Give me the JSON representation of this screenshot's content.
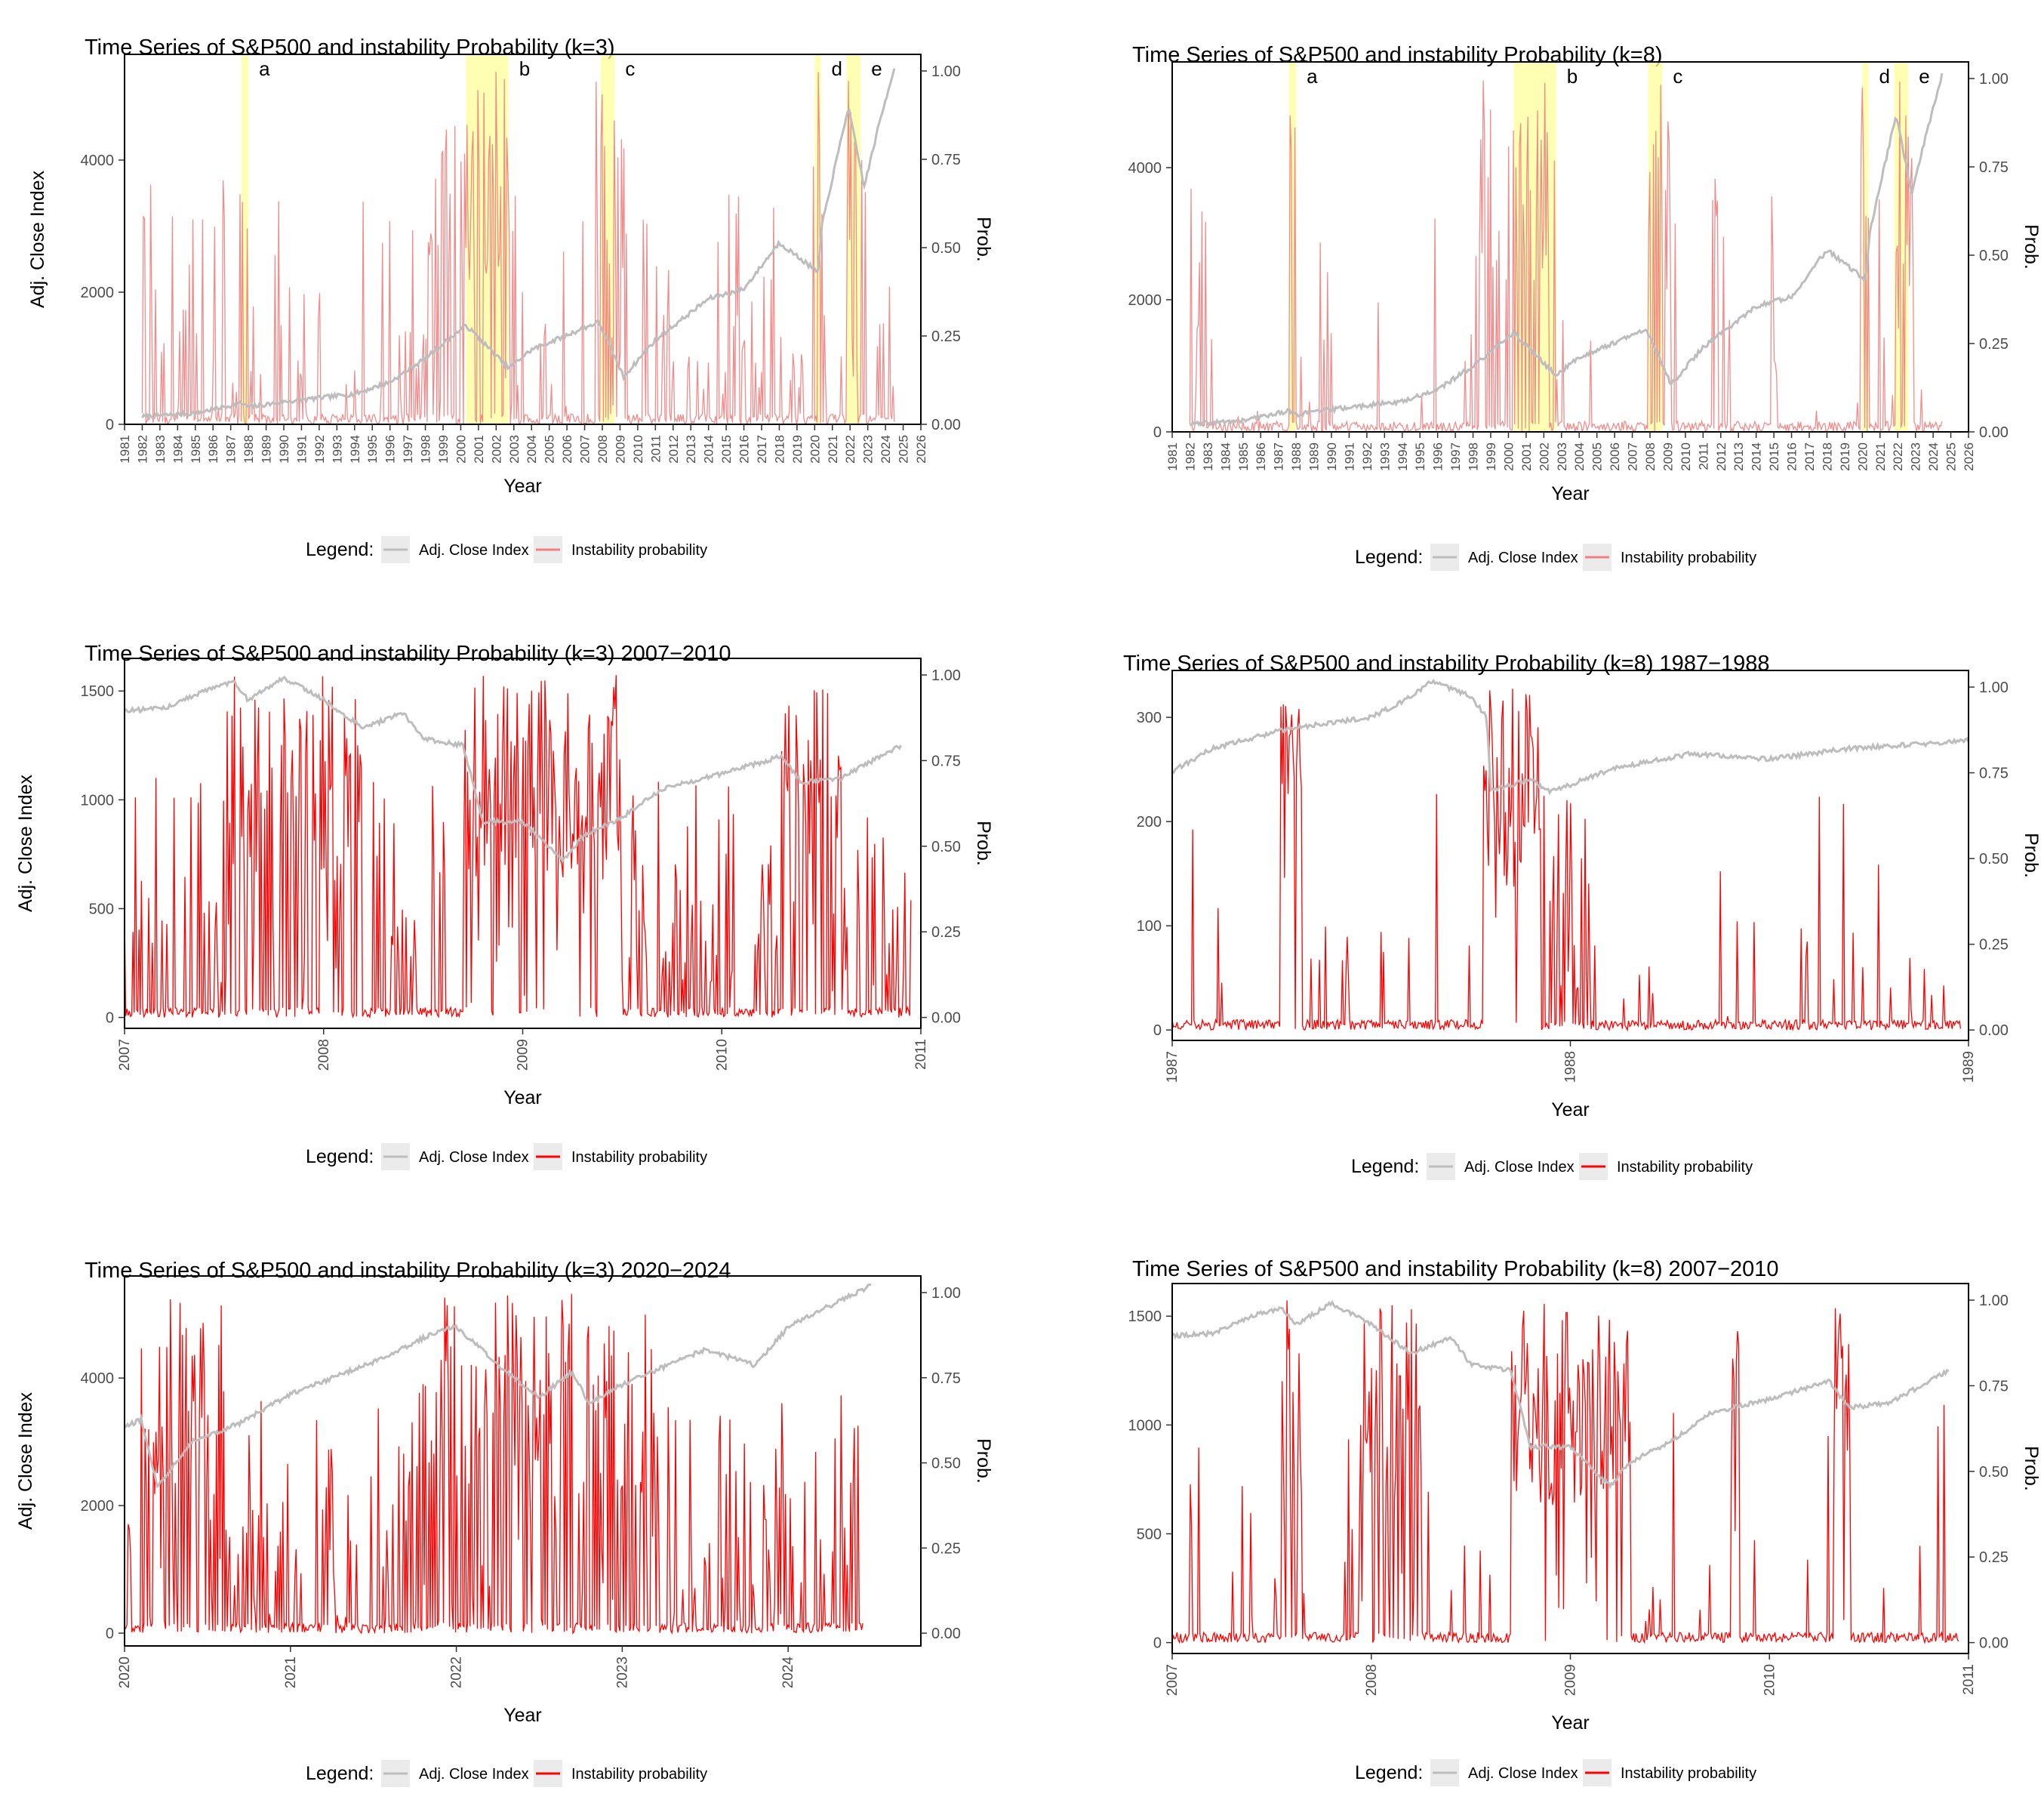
{
  "colors": {
    "price": "#bdbdbd",
    "prob_light": "#f08080",
    "prob_strong": "#ff0000",
    "highlight": "#ffff99",
    "overlap": "#f4a460",
    "key_bg": "#ebebeb"
  },
  "legend": {
    "title": "Legend:",
    "price_label": "Adj. Close Index",
    "prob_label": "Instability probability"
  },
  "chart_data": [
    {
      "id": "full-k3",
      "type": "line",
      "title": "Time Series of S&P500 and instability Probability (k=3)",
      "xlabel": "Year",
      "ylabel": "Adj. Close Index",
      "ylabel2": "Prob.",
      "xlim": [
        1981,
        2026
      ],
      "ylim": [
        0,
        5600
      ],
      "y2lim": [
        0,
        1.0
      ],
      "xticks": [
        "1981",
        "1982",
        "1983",
        "1984",
        "1985",
        "1986",
        "1987",
        "1988",
        "1989",
        "1990",
        "1991",
        "1992",
        "1993",
        "1994",
        "1995",
        "1996",
        "1997",
        "1998",
        "1999",
        "2000",
        "2001",
        "2002",
        "2003",
        "2004",
        "2005",
        "2006",
        "2007",
        "2008",
        "2009",
        "2010",
        "2011",
        "2012",
        "2013",
        "2014",
        "2015",
        "2016",
        "2017",
        "2018",
        "2019",
        "2020",
        "2021",
        "2022",
        "2023",
        "2024",
        "2025",
        "2026"
      ],
      "yticks": [
        "0",
        "2000",
        "4000"
      ],
      "y2ticks": [
        "0.00",
        "0.25",
        "0.50",
        "0.75",
        "1.00"
      ],
      "regions": [
        {
          "label": "a",
          "start": 1987.6,
          "end": 1988.0
        },
        {
          "label": "b",
          "start": 2000.3,
          "end": 2002.7
        },
        {
          "label": "c",
          "start": 2007.9,
          "end": 2008.7
        },
        {
          "label": "d",
          "start": 2020.0,
          "end": 2020.35
        },
        {
          "label": "e",
          "start": 2021.8,
          "end": 2022.6
        }
      ],
      "price_anchors": [
        [
          1982,
          115
        ],
        [
          1985,
          170
        ],
        [
          1987.6,
          320
        ],
        [
          1988,
          260
        ],
        [
          1990,
          340
        ],
        [
          1994,
          460
        ],
        [
          1996,
          640
        ],
        [
          1998,
          1000
        ],
        [
          2000.3,
          1500
        ],
        [
          2002.7,
          850
        ],
        [
          2004,
          1130
        ],
        [
          2007.8,
          1550
        ],
        [
          2009.2,
          720
        ],
        [
          2011,
          1280
        ],
        [
          2014,
          1900
        ],
        [
          2016,
          2050
        ],
        [
          2018,
          2750
        ],
        [
          2020.2,
          2300
        ],
        [
          2020.4,
          3000
        ],
        [
          2021.9,
          4800
        ],
        [
          2022.8,
          3600
        ],
        [
          2023.6,
          4500
        ],
        [
          2024.5,
          5400
        ]
      ],
      "prob": {
        "min": 1982.0,
        "max": 2024.5,
        "base": 0.15,
        "spike": 0.11,
        "regions": [
          [
            1982.3,
            1983.1,
            0.35
          ],
          [
            1987.6,
            1988.0,
            0.6
          ],
          [
            1998.0,
            2003.0,
            0.55
          ],
          [
            2007.6,
            2009.3,
            0.5
          ],
          [
            2010.3,
            2010.8,
            0.35
          ],
          [
            2011.4,
            2011.9,
            0.4
          ],
          [
            2019.9,
            2020.5,
            0.55
          ],
          [
            2021.8,
            2022.8,
            0.45
          ]
        ]
      },
      "prob_color": "light"
    },
    {
      "id": "full-k8",
      "type": "line",
      "title": "Time Series of S&P500 and instability Probability (k=8)",
      "xlabel": "Year",
      "ylabel": "",
      "ylabel2": "Prob.",
      "xlim": [
        1981,
        2026
      ],
      "ylim": [
        0,
        5600
      ],
      "y2lim": [
        0,
        1.0
      ],
      "xticks": [
        "1981",
        "1982",
        "1983",
        "1984",
        "1985",
        "1986",
        "1987",
        "1988",
        "1989",
        "1990",
        "1991",
        "1992",
        "1993",
        "1994",
        "1995",
        "1996",
        "1997",
        "1998",
        "1999",
        "2000",
        "2001",
        "2002",
        "2003",
        "2004",
        "2005",
        "2006",
        "2007",
        "2008",
        "2009",
        "2010",
        "2011",
        "2012",
        "2013",
        "2014",
        "2015",
        "2016",
        "2017",
        "2018",
        "2019",
        "2020",
        "2021",
        "2022",
        "2023",
        "2024",
        "2025",
        "2026"
      ],
      "yticks": [
        "0",
        "2000",
        "4000"
      ],
      "y2ticks": [
        "0.00",
        "0.25",
        "0.50",
        "0.75",
        "1.00"
      ],
      "regions": [
        {
          "label": "a",
          "start": 1987.6,
          "end": 1988.0
        },
        {
          "label": "b",
          "start": 2000.3,
          "end": 2002.7
        },
        {
          "label": "c",
          "start": 2007.9,
          "end": 2008.7
        },
        {
          "label": "d",
          "start": 2020.0,
          "end": 2020.35
        },
        {
          "label": "e",
          "start": 2021.8,
          "end": 2022.6
        }
      ],
      "price_anchors": [
        [
          1982,
          115
        ],
        [
          1985,
          170
        ],
        [
          1987.6,
          320
        ],
        [
          1988,
          260
        ],
        [
          1990,
          340
        ],
        [
          1994,
          460
        ],
        [
          1996,
          640
        ],
        [
          1998,
          1000
        ],
        [
          2000.3,
          1500
        ],
        [
          2002.7,
          850
        ],
        [
          2004,
          1130
        ],
        [
          2007.8,
          1550
        ],
        [
          2009.2,
          720
        ],
        [
          2011,
          1280
        ],
        [
          2014,
          1900
        ],
        [
          2016,
          2050
        ],
        [
          2018,
          2750
        ],
        [
          2020.2,
          2300
        ],
        [
          2020.4,
          3000
        ],
        [
          2021.9,
          4800
        ],
        [
          2022.8,
          3600
        ],
        [
          2023.6,
          4500
        ],
        [
          2024.5,
          5400
        ]
      ],
      "prob": {
        "min": 1982.0,
        "max": 2024.5,
        "base": 0.03,
        "spike": 0.03,
        "regions": [
          [
            1982.3,
            1982.9,
            0.3
          ],
          [
            1987.6,
            1988.0,
            0.7
          ],
          [
            1989.6,
            1990.0,
            0.4
          ],
          [
            1998.0,
            2003.0,
            0.5
          ],
          [
            2007.9,
            2009.3,
            0.6
          ],
          [
            2011.5,
            2011.9,
            0.45
          ],
          [
            2019.9,
            2020.4,
            0.6
          ],
          [
            2021.9,
            2022.9,
            0.5
          ]
        ]
      },
      "prob_color": "light"
    },
    {
      "id": "k3-2007-2010",
      "type": "line",
      "title": "Time Series of S&P500 and instability Probability (k=3) 2007−2010",
      "xlabel": "Year",
      "ylabel": "Adj. Close Index",
      "ylabel2": "Prob.",
      "xlim": [
        2007,
        2011
      ],
      "ylim": [
        -50,
        1650
      ],
      "y2lim": [
        0,
        1.0
      ],
      "xticks": [
        "2007",
        "2008",
        "2009",
        "2010",
        "2011"
      ],
      "yticks": [
        "0",
        "500",
        "1000",
        "1500"
      ],
      "y2ticks": [
        "0.00",
        "0.25",
        "0.50",
        "0.75",
        "1.00"
      ],
      "regions": [],
      "price_anchors": [
        [
          2007.0,
          1410
        ],
        [
          2007.2,
          1420
        ],
        [
          2007.4,
          1500
        ],
        [
          2007.55,
          1540
        ],
        [
          2007.62,
          1460
        ],
        [
          2007.8,
          1560
        ],
        [
          2008.0,
          1460
        ],
        [
          2008.2,
          1330
        ],
        [
          2008.4,
          1400
        ],
        [
          2008.5,
          1280
        ],
        [
          2008.7,
          1250
        ],
        [
          2008.8,
          900
        ],
        [
          2009.0,
          900
        ],
        [
          2009.2,
          720
        ],
        [
          2009.3,
          830
        ],
        [
          2009.5,
          920
        ],
        [
          2009.7,
          1050
        ],
        [
          2010.0,
          1120
        ],
        [
          2010.3,
          1200
        ],
        [
          2010.4,
          1080
        ],
        [
          2010.6,
          1100
        ],
        [
          2010.9,
          1250
        ]
      ],
      "prob": {
        "min": 2007.0,
        "max": 2010.95,
        "base": 0.2,
        "spike": 0.08,
        "regions": [
          [
            2007.5,
            2008.2,
            0.6
          ],
          [
            2008.7,
            2009.5,
            0.8
          ],
          [
            2009.5,
            2009.9,
            0.4
          ],
          [
            2010.3,
            2010.6,
            0.6
          ]
        ]
      },
      "prob_color": "strong"
    },
    {
      "id": "k8-1987-1988",
      "type": "line",
      "title": "Time Series of S&P500 and instability Probability (k=8) 1987−1988",
      "xlabel": "Year",
      "ylabel": "",
      "ylabel2": "Prob.",
      "xlim": [
        1987,
        1989
      ],
      "ylim": [
        -10,
        345
      ],
      "y2lim": [
        0,
        1.0
      ],
      "xticks": [
        "1987",
        "1988",
        "1989"
      ],
      "yticks": [
        "0",
        "100",
        "200",
        "300"
      ],
      "y2ticks": [
        "0.00",
        "0.25",
        "0.50",
        "0.75",
        "1.00"
      ],
      "regions": [],
      "price_anchors": [
        [
          1987.0,
          248
        ],
        [
          1987.1,
          270
        ],
        [
          1987.3,
          290
        ],
        [
          1987.5,
          300
        ],
        [
          1987.6,
          320
        ],
        [
          1987.65,
          335
        ],
        [
          1987.75,
          320
        ],
        [
          1987.79,
          300
        ],
        [
          1987.8,
          230
        ],
        [
          1987.9,
          240
        ],
        [
          1987.95,
          228
        ],
        [
          1988.1,
          250
        ],
        [
          1988.3,
          265
        ],
        [
          1988.5,
          260
        ],
        [
          1988.7,
          270
        ],
        [
          1988.9,
          275
        ],
        [
          1989.0,
          278
        ]
      ],
      "prob": {
        "min": 1987.0,
        "max": 1988.98,
        "base": 0.04,
        "spike": 0.03,
        "regions": [
          [
            1987.27,
            1987.33,
            0.9
          ],
          [
            1987.78,
            1987.92,
            0.95
          ],
          [
            1987.92,
            1988.05,
            0.4
          ]
        ]
      },
      "prob_color": "strong"
    },
    {
      "id": "k3-2020-2024",
      "type": "line",
      "title": "Time Series of S&P500 and instability Probability (k=3) 2020−2024",
      "xlabel": "Year",
      "ylabel": "Adj. Close Index",
      "ylabel2": "Prob.",
      "xlim": [
        2020,
        2024.8
      ],
      "ylim": [
        -200,
        5600
      ],
      "y2lim": [
        0,
        1.0
      ],
      "xticks": [
        "2020",
        "2021",
        "2022",
        "2023",
        "2024"
      ],
      "yticks": [
        "0",
        "2000",
        "4000"
      ],
      "y2ticks": [
        "0.00",
        "0.25",
        "0.50",
        "0.75",
        "1.00"
      ],
      "regions": [],
      "price_anchors": [
        [
          2020.0,
          3230
        ],
        [
          2020.1,
          3350
        ],
        [
          2020.2,
          2300
        ],
        [
          2020.4,
          3000
        ],
        [
          2020.7,
          3300
        ],
        [
          2021.0,
          3750
        ],
        [
          2021.5,
          4250
        ],
        [
          2021.9,
          4750
        ],
        [
          2022.0,
          4800
        ],
        [
          2022.3,
          4100
        ],
        [
          2022.5,
          3700
        ],
        [
          2022.7,
          4100
        ],
        [
          2022.8,
          3600
        ],
        [
          2023.0,
          3900
        ],
        [
          2023.5,
          4450
        ],
        [
          2023.8,
          4200
        ],
        [
          2024.0,
          4800
        ],
        [
          2024.3,
          5200
        ],
        [
          2024.5,
          5450
        ]
      ],
      "prob": {
        "min": 2020.0,
        "max": 2024.45,
        "base": 0.25,
        "spike": 0.12,
        "regions": [
          [
            2020.1,
            2020.6,
            0.7
          ],
          [
            2021.7,
            2023.2,
            0.5
          ]
        ]
      },
      "prob_color": "strong"
    },
    {
      "id": "k8-2007-2010",
      "type": "line",
      "title": "Time Series of S&P500 and instability Probability (k=8) 2007−2010",
      "xlabel": "Year",
      "ylabel": "",
      "ylabel2": "Prob.",
      "xlim": [
        2007,
        2011
      ],
      "ylim": [
        -50,
        1650
      ],
      "y2lim": [
        0,
        1.0
      ],
      "xticks": [
        "2007",
        "2008",
        "2009",
        "2010",
        "2011"
      ],
      "yticks": [
        "0",
        "500",
        "1000",
        "1500"
      ],
      "y2ticks": [
        "0.00",
        "0.25",
        "0.50",
        "0.75",
        "1.00"
      ],
      "regions": [],
      "price_anchors": [
        [
          2007.0,
          1410
        ],
        [
          2007.2,
          1420
        ],
        [
          2007.4,
          1500
        ],
        [
          2007.55,
          1540
        ],
        [
          2007.62,
          1460
        ],
        [
          2007.8,
          1560
        ],
        [
          2008.0,
          1460
        ],
        [
          2008.2,
          1330
        ],
        [
          2008.4,
          1400
        ],
        [
          2008.5,
          1280
        ],
        [
          2008.7,
          1250
        ],
        [
          2008.8,
          900
        ],
        [
          2009.0,
          900
        ],
        [
          2009.2,
          720
        ],
        [
          2009.3,
          830
        ],
        [
          2009.5,
          920
        ],
        [
          2009.7,
          1050
        ],
        [
          2010.0,
          1120
        ],
        [
          2010.3,
          1200
        ],
        [
          2010.4,
          1080
        ],
        [
          2010.6,
          1100
        ],
        [
          2010.9,
          1250
        ]
      ],
      "prob": {
        "min": 2007.0,
        "max": 2010.95,
        "base": 0.04,
        "spike": 0.04,
        "regions": [
          [
            2007.55,
            2007.65,
            0.75
          ],
          [
            2007.95,
            2008.25,
            0.7
          ],
          [
            2008.7,
            2009.3,
            0.9
          ],
          [
            2009.8,
            2009.85,
            0.9
          ],
          [
            2010.32,
            2010.4,
            0.85
          ]
        ]
      },
      "prob_color": "strong"
    }
  ]
}
